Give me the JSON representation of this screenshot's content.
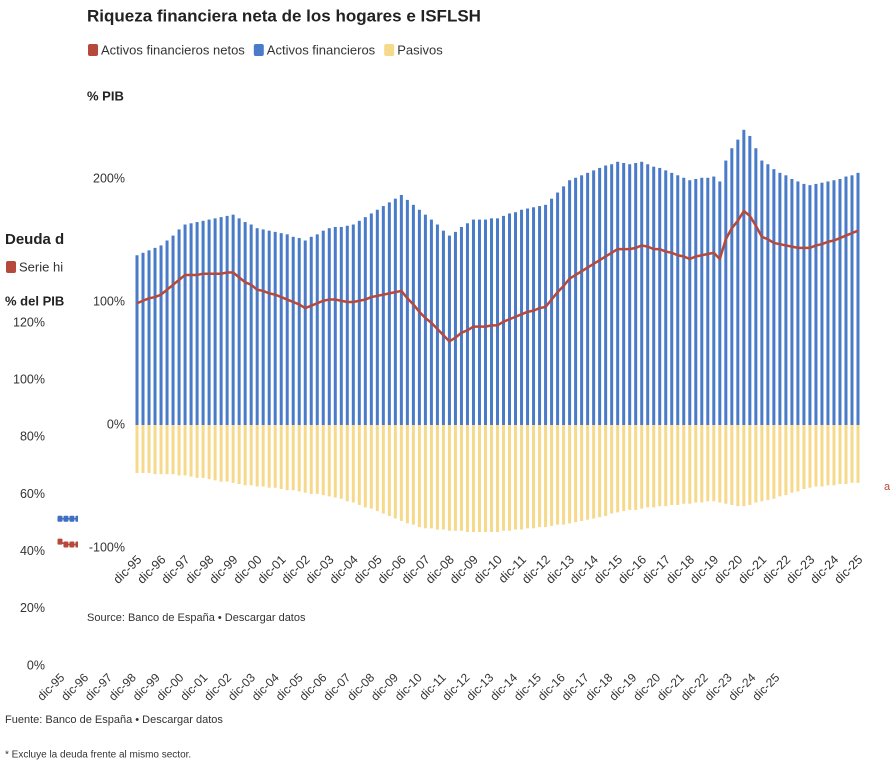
{
  "chart_data": [
    {
      "type": "line",
      "title": "Deuda d",
      "ylabel": "% del PIB",
      "source": "Fuente: Banco de España • Descargar datos",
      "footnote": "* Excluye la deuda frente al mismo sector.",
      "annotation": "a",
      "categories": [
        "dic-95",
        null,
        null,
        null,
        "dic-96",
        null,
        null,
        null,
        "dic-97",
        null,
        null,
        null,
        "dic-98",
        null,
        null,
        null,
        "dic-99",
        null,
        null,
        null,
        "dic-00",
        null,
        null,
        null,
        "dic-01",
        null,
        null,
        null,
        "dic-02",
        null,
        null,
        null,
        "dic-03",
        null,
        null,
        null,
        "dic-04",
        null,
        null,
        null,
        "dic-05",
        null,
        null,
        null,
        "dic-06",
        null,
        null,
        null,
        "dic-07",
        null,
        null,
        null,
        "dic-08",
        null,
        null,
        null,
        "dic-09",
        null,
        null,
        null,
        "dic-10",
        null,
        null,
        null,
        "dic-11",
        null,
        null,
        null,
        "dic-12",
        null,
        null,
        null,
        "dic-13",
        null,
        null,
        null,
        "dic-14",
        null,
        null,
        null,
        "dic-15",
        null,
        null,
        null,
        "dic-16",
        null,
        null,
        null,
        "dic-17",
        null,
        null,
        null,
        "dic-18",
        null,
        null,
        null,
        "dic-19",
        null,
        null,
        null,
        "dic-20",
        null,
        null,
        null,
        "dic-21",
        null,
        null,
        null,
        "dic-22",
        null,
        null,
        null,
        "dic-23",
        null,
        null,
        null,
        "dic-24",
        null,
        null,
        null,
        "dic-25"
      ],
      "series": [
        {
          "name": "Serie hi",
          "color": "#b5493c",
          "values": [
            43.5,
            42.5,
            42.5,
            42.5,
            null,
            null,
            null,
            null,
            null,
            null,
            null,
            null,
            null,
            null,
            null,
            null,
            null,
            null,
            null,
            null,
            null,
            null,
            null,
            null,
            null,
            null,
            null,
            null,
            null,
            null,
            null,
            null,
            null,
            null,
            null,
            null,
            null,
            null,
            null,
            null,
            null,
            null,
            null,
            null,
            null,
            null,
            null,
            null,
            null,
            null,
            null,
            null,
            null,
            null,
            null,
            null,
            null,
            null,
            null,
            null,
            null,
            null,
            null,
            null,
            null,
            null,
            null,
            null,
            null,
            null,
            null,
            null,
            null,
            null,
            null,
            null,
            null,
            null,
            null,
            null,
            null,
            null,
            null,
            null,
            null,
            null,
            null,
            null,
            null,
            null,
            null,
            null,
            null,
            null,
            null,
            null,
            null,
            null,
            null,
            null,
            null,
            null,
            null,
            null,
            null,
            null,
            null,
            null,
            null,
            null,
            null,
            null,
            null,
            null,
            null,
            null,
            null,
            null,
            null,
            null,
            null
          ]
        },
        {
          "color": "#3f6fc1",
          "values": [
            51.5,
            51.5,
            51.5,
            51.5,
            null,
            null,
            null,
            null,
            null,
            null,
            null,
            null,
            null,
            null,
            null,
            null,
            null,
            null,
            null,
            null,
            null,
            null,
            null,
            null,
            null,
            null,
            null,
            null,
            null,
            null,
            null,
            null,
            null,
            null,
            null,
            null,
            null,
            null,
            null,
            null,
            null,
            null,
            null,
            null,
            null,
            null,
            null,
            null,
            null,
            null,
            null,
            null,
            null,
            null,
            null,
            null,
            null,
            null,
            null,
            null,
            null,
            null,
            null,
            null,
            null,
            null,
            null,
            null,
            null,
            null,
            null,
            null,
            null,
            null,
            null,
            null,
            null,
            null,
            null,
            null,
            null,
            null,
            null,
            null,
            null,
            null,
            null,
            null,
            null,
            null,
            null,
            null,
            null,
            null,
            null,
            null,
            null,
            null,
            null,
            null,
            null,
            null,
            null,
            null,
            null,
            null,
            null,
            null,
            null,
            null,
            null,
            null,
            null,
            null,
            null,
            null,
            null,
            null,
            null,
            null,
            null
          ]
        }
      ],
      "ylim": [
        0,
        120
      ],
      "yticks": [
        {
          "value": 0,
          "label": "0%"
        },
        {
          "value": 20,
          "label": "20%"
        },
        {
          "value": 40,
          "label": "40%"
        },
        {
          "value": 60,
          "label": "60%"
        },
        {
          "value": 80,
          "label": "80%"
        },
        {
          "value": 100,
          "label": "100%"
        },
        {
          "value": 120,
          "label": "120%"
        }
      ]
    },
    {
      "type": "bar",
      "title": "Riqueza financiera neta de los hogares e ISFLSH",
      "ylabel": "% PIB",
      "source": "Source: Banco de España • Descargar datos",
      "categories": [
        "dic-95",
        null,
        null,
        null,
        "dic-96",
        null,
        null,
        null,
        "dic-97",
        null,
        null,
        null,
        "dic-98",
        null,
        null,
        null,
        "dic-99",
        null,
        null,
        null,
        "dic-00",
        null,
        null,
        null,
        "dic-01",
        null,
        null,
        null,
        "dic-02",
        null,
        null,
        null,
        "dic-03",
        null,
        null,
        null,
        "dic-04",
        null,
        null,
        null,
        "dic-05",
        null,
        null,
        null,
        "dic-06",
        null,
        null,
        null,
        "dic-07",
        null,
        null,
        null,
        "dic-08",
        null,
        null,
        null,
        "dic-09",
        null,
        null,
        null,
        "dic-10",
        null,
        null,
        null,
        "dic-11",
        null,
        null,
        null,
        "dic-12",
        null,
        null,
        null,
        "dic-13",
        null,
        null,
        null,
        "dic-14",
        null,
        null,
        null,
        "dic-15",
        null,
        null,
        null,
        "dic-16",
        null,
        null,
        null,
        "dic-17",
        null,
        null,
        null,
        "dic-18",
        null,
        null,
        null,
        "dic-19",
        null,
        null,
        null,
        "dic-20",
        null,
        null,
        null,
        "dic-21",
        null,
        null,
        null,
        "dic-22",
        null,
        null,
        null,
        "dic-23",
        null,
        null,
        null,
        "dic-24",
        null,
        null,
        null,
        "dic-25"
      ],
      "series": [
        {
          "name": "Activos financieros netos",
          "type": "line",
          "color": "#b5493c",
          "values": [
            99,
            101,
            103,
            104,
            106,
            110,
            114,
            118,
            122,
            122,
            122,
            123,
            123,
            123,
            123,
            124,
            124,
            120,
            116,
            114,
            110,
            109,
            107,
            106,
            104,
            102,
            100,
            98,
            95,
            97,
            99,
            101,
            102,
            102,
            101,
            100,
            100,
            101,
            102,
            104,
            105,
            106,
            107,
            108,
            109,
            103,
            98,
            92,
            87,
            83,
            78,
            73,
            68,
            71,
            75,
            77,
            80,
            80,
            80,
            81,
            81,
            84,
            86,
            88,
            90,
            92,
            93,
            95,
            96,
            102,
            108,
            113,
            119,
            122,
            125,
            128,
            131,
            134,
            137,
            140,
            143,
            143,
            143,
            144,
            146,
            145,
            143,
            143,
            141,
            140,
            138,
            137,
            135,
            137,
            138,
            139,
            140,
            135,
            151,
            160,
            166,
            174,
            170,
            162,
            153,
            151,
            148,
            147,
            146,
            145,
            144,
            144,
            144,
            146,
            147,
            149,
            150,
            152,
            154,
            156,
            158
          ]
        },
        {
          "name": "Activos financieros",
          "type": "bar",
          "color": "#4a7bc8",
          "values": [
            138,
            140,
            142,
            144,
            146,
            150,
            154,
            159,
            163,
            164,
            165,
            166,
            167,
            168,
            169,
            170,
            171,
            168,
            165,
            163,
            160,
            159,
            158,
            157,
            156,
            155,
            153,
            152,
            150,
            153,
            155,
            158,
            160,
            161,
            161,
            162,
            163,
            166,
            169,
            172,
            175,
            178,
            181,
            184,
            187,
            183,
            179,
            175,
            171,
            167,
            163,
            158,
            154,
            157,
            161,
            164,
            167,
            167,
            167,
            168,
            168,
            170,
            172,
            173,
            175,
            176,
            177,
            178,
            179,
            184,
            189,
            194,
            199,
            201,
            203,
            205,
            207,
            209,
            211,
            212,
            214,
            213,
            212,
            213,
            214,
            212,
            210,
            209,
            207,
            205,
            203,
            201,
            199,
            200,
            201,
            201,
            202,
            198,
            215,
            225,
            232,
            240,
            235,
            225,
            215,
            212,
            208,
            205,
            203,
            200,
            198,
            196,
            195,
            196,
            197,
            198,
            199,
            200,
            202,
            203,
            205
          ]
        },
        {
          "name": "Pasivos",
          "type": "bar",
          "color": "#f6d98a",
          "values": [
            -39,
            -39,
            -39,
            -40,
            -40,
            -40,
            -40,
            -41,
            -41,
            -42,
            -43,
            -43,
            -44,
            -45,
            -46,
            -46,
            -47,
            -48,
            -49,
            -49,
            -50,
            -50,
            -51,
            -51,
            -52,
            -53,
            -53,
            -54,
            -55,
            -56,
            -56,
            -57,
            -58,
            -59,
            -60,
            -62,
            -63,
            -65,
            -67,
            -68,
            -70,
            -72,
            -74,
            -76,
            -78,
            -80,
            -81,
            -83,
            -84,
            -84,
            -85,
            -85,
            -86,
            -86,
            -86,
            -87,
            -87,
            -87,
            -87,
            -87,
            -87,
            -86,
            -86,
            -85,
            -85,
            -84,
            -84,
            -83,
            -83,
            -82,
            -81,
            -81,
            -80,
            -79,
            -78,
            -77,
            -76,
            -75,
            -74,
            -72,
            -71,
            -70,
            -69,
            -69,
            -68,
            -67,
            -67,
            -66,
            -66,
            -65,
            -65,
            -64,
            -64,
            -63,
            -63,
            -62,
            -62,
            -63,
            -64,
            -65,
            -66,
            -66,
            -65,
            -63,
            -62,
            -61,
            -60,
            -58,
            -57,
            -55,
            -54,
            -52,
            -51,
            -50,
            -50,
            -49,
            -49,
            -48,
            -48,
            -47,
            -47
          ]
        }
      ],
      "ylim": [
        -100,
        250
      ],
      "yticks": [
        {
          "value": -100,
          "label": "-100%"
        },
        {
          "value": 0,
          "label": "0%"
        },
        {
          "value": 100,
          "label": "100%"
        },
        {
          "value": 200,
          "label": "200%"
        }
      ]
    }
  ]
}
